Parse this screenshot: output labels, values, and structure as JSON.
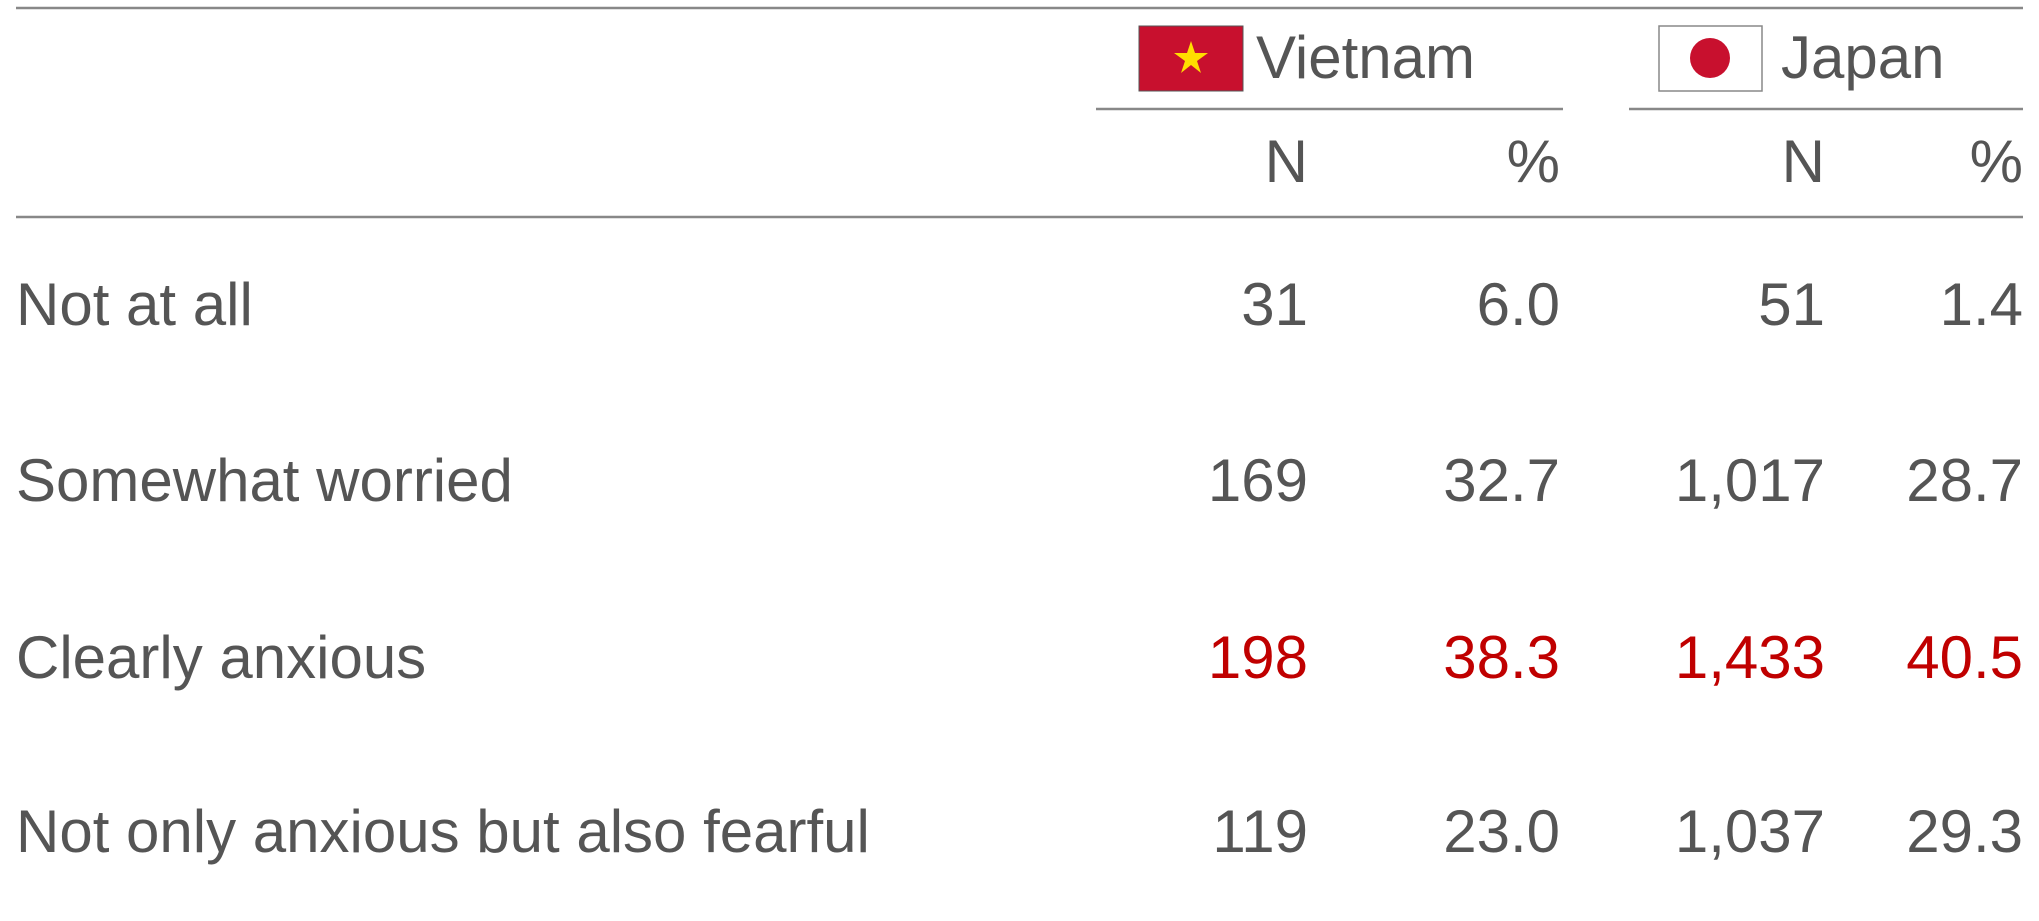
{
  "table": {
    "columns": [
      {
        "country": "Vietnam",
        "subheaders": [
          "N",
          "%"
        ]
      },
      {
        "country": "Japan",
        "subheaders": [
          "N",
          "%"
        ]
      }
    ],
    "rows": [
      [
        "Not at all",
        "31",
        "6.0",
        "51",
        "1.4"
      ],
      [
        "Somewhat worried",
        "169",
        "32.7",
        "1,017",
        "28.7"
      ],
      [
        "Clearly anxious",
        "198",
        "38.3",
        "1,433",
        "40.5"
      ],
      [
        "Not only anxious but also fearful",
        "119",
        "23.0",
        "1,037",
        "29.3"
      ]
    ]
  }
}
